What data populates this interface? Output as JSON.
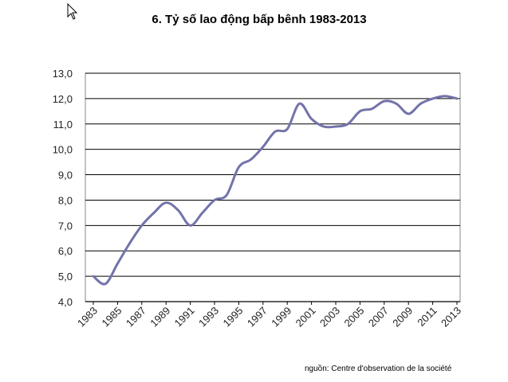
{
  "title": "6. Tỷ số lao động bấp bênh 1983-2013",
  "source_note": "nguồn: Centre d'observation de la société",
  "colors": {
    "line": "#7373aa",
    "grid": "#000000"
  },
  "chart_data": {
    "type": "line",
    "title": "6. Tỷ số lao động bấp bênh 1983-2013",
    "xlabel": "",
    "ylabel": "",
    "x": [
      1983,
      1984,
      1985,
      1986,
      1987,
      1988,
      1989,
      1990,
      1991,
      1992,
      1993,
      1994,
      1995,
      1996,
      1997,
      1998,
      1999,
      2000,
      2001,
      2002,
      2003,
      2004,
      2005,
      2006,
      2007,
      2008,
      2009,
      2010,
      2011,
      2012,
      2013
    ],
    "values": [
      5.0,
      4.7,
      5.5,
      6.3,
      7.0,
      7.5,
      7.9,
      7.6,
      7.0,
      7.5,
      8.0,
      8.2,
      9.3,
      9.6,
      10.1,
      10.7,
      10.8,
      11.8,
      11.2,
      10.9,
      10.9,
      11.0,
      11.5,
      11.6,
      11.9,
      11.8,
      11.4,
      11.8,
      12.0,
      12.1,
      12.0
    ],
    "x_tick_labels": [
      "1983",
      "1985",
      "1987",
      "1989",
      "1991",
      "1993",
      "1995",
      "1997",
      "1999",
      "2001",
      "2003",
      "2005",
      "2007",
      "2009",
      "2011",
      "2013"
    ],
    "y_tick_labels": [
      "4,0",
      "5,0",
      "6,0",
      "7,0",
      "8,0",
      "9,0",
      "10,0",
      "11,0",
      "12,0",
      "13,0"
    ],
    "ylim": [
      4,
      13
    ],
    "xlim": [
      1983,
      2013
    ],
    "grid": "horizontal",
    "legend": "none"
  }
}
